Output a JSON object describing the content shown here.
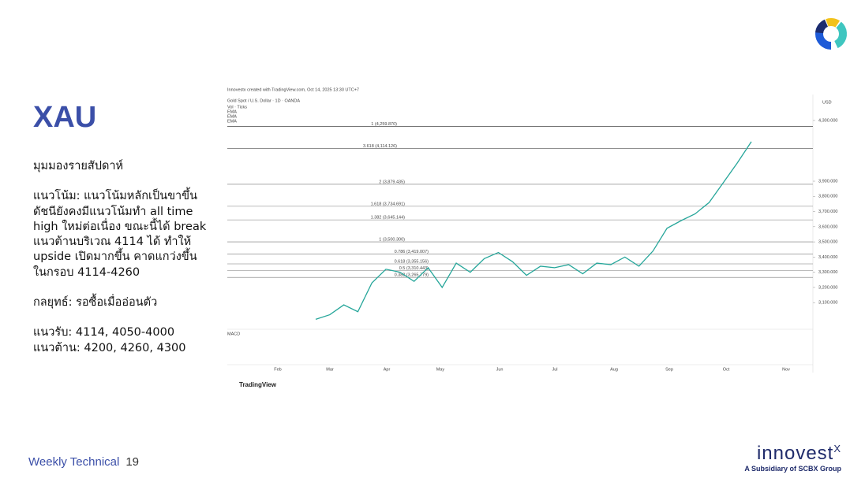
{
  "slide": {
    "title": "XAU",
    "heading": "มุมมองรายสัปดาห์",
    "paragraphs": [
      [
        "แนวโน้ม: แนวโน้มหลักเป็นขาขึ้น",
        "ดัชนียังคงมีแนวโน้มทำ all time",
        "high ใหม่ต่อเนื่อง ขณะนี้ได้ break",
        "แนวต้านบริเวณ 4114 ได้ ทำให้",
        "upside เปิดมากขึ้น คาดแกว่งขึ้น",
        "ในกรอบ 4114-4260"
      ],
      [
        "กลยุทธ์: รอซื้อเมื่ออ่อนตัว"
      ],
      [
        "แนวรับ: 4114, 4050-4000",
        "แนวต้าน: 4200, 4260, 4300"
      ]
    ],
    "footer": {
      "label": "Weekly Technical",
      "page": "19"
    },
    "brand": {
      "name": "innovest",
      "suffix": "X",
      "tagline": "A Subsidiary of SCBX Group"
    }
  },
  "chart_data": {
    "type": "line",
    "header": "Innovestx created with TradingView.com, Oct 14, 2025 13:30 UTC+7",
    "symbol": "Gold Spot / U.S. Dollar · 1D · OANDA",
    "indicators": [
      "Vol · Ticks",
      "EMA",
      "EMA",
      "EMA"
    ],
    "y_unit": "USD",
    "categories": [
      null,
      null,
      null,
      null,
      null,
      null,
      null,
      null,
      null,
      null,
      null,
      null,
      null,
      null,
      null,
      null,
      null,
      null,
      null,
      null,
      null,
      null,
      null,
      null,
      null,
      null,
      null,
      null,
      null,
      null,
      null,
      null
    ],
    "values": [
      2990,
      3020,
      3085,
      3040,
      3230,
      3320,
      3300,
      3240,
      3330,
      3200,
      3360,
      3300,
      3390,
      3430,
      3370,
      3280,
      3340,
      3330,
      3350,
      3290,
      3360,
      3350,
      3400,
      3340,
      3440,
      3590,
      3640,
      3685,
      3760,
      3890,
      4020,
      4160
    ],
    "color": "#26a69a",
    "ylim": [
      2940,
      4445
    ],
    "yticks": [
      {
        "value": 3100,
        "label": "3,100.000"
      },
      {
        "value": 3200,
        "label": "3,200.000"
      },
      {
        "value": 3300,
        "label": "3,300.000"
      },
      {
        "value": 3400,
        "label": "3,400.000"
      },
      {
        "value": 3500,
        "label": "3,500.000"
      },
      {
        "value": 3600,
        "label": "3,600.000"
      },
      {
        "value": 3700,
        "label": "3,700.000"
      },
      {
        "value": 3800,
        "label": "3,800.000"
      },
      {
        "value": 3900,
        "label": "3,900.000"
      },
      {
        "value": 4300,
        "label": "4,300.000"
      }
    ],
    "xticks": [
      "Feb",
      "Mar",
      "Apr",
      "May",
      "Jun",
      "Jul",
      "Aug",
      "Sep",
      "Oct",
      "Nov"
    ],
    "levels": [
      {
        "label": "1 (4,259.870)",
        "value": 4259.87
      },
      {
        "label": "3.618 (4,114.126)",
        "value": 4114.126
      },
      {
        "label": "2 (3,879.435)",
        "value": 3879.435
      },
      {
        "label": "1.618 (3,734.691)",
        "value": 3734.691
      },
      {
        "label": "1.382 (3,645.144)",
        "value": 3645.144
      },
      {
        "label": "1 (3,500.300)",
        "value": 3500.3
      },
      {
        "label": "0.786 (3,419.007)",
        "value": 3419.007
      },
      {
        "label": "0.618 (3,355.156)",
        "value": 3355.156
      },
      {
        "label": "0.5 (3,310.443)",
        "value": 3310.443
      },
      {
        "label": "0.382 (3,265.779)",
        "value": 3265.779
      }
    ],
    "macd_label": "MACD",
    "footer_brand": "TradingView"
  }
}
